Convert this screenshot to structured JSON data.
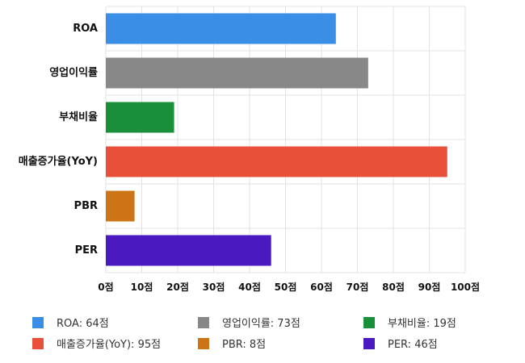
{
  "chart_data": {
    "type": "bar",
    "orientation": "horizontal",
    "categories": [
      "ROA",
      "영업이익률",
      "부채비율",
      "매출증가율(YoY)",
      "PBR",
      "PER"
    ],
    "values": [
      64,
      73,
      19,
      95,
      8,
      46
    ],
    "colors": [
      "#3a8ee6",
      "#888888",
      "#1a8f3a",
      "#e8503a",
      "#cc7416",
      "#4a1ac0"
    ],
    "xlim": [
      0,
      100
    ],
    "x_ticks": [
      0,
      10,
      20,
      30,
      40,
      50,
      60,
      70,
      80,
      90,
      100
    ],
    "x_tick_labels": [
      "0점",
      "10점",
      "20점",
      "30점",
      "40점",
      "50점",
      "60점",
      "70점",
      "80점",
      "90점",
      "100점"
    ],
    "grid": true,
    "legend_position": "bottom",
    "legend": [
      {
        "label": "ROA: 64점",
        "color": "#3a8ee6"
      },
      {
        "label": "영업이익률: 73점",
        "color": "#888888"
      },
      {
        "label": "부채비율: 19점",
        "color": "#1a8f3a"
      },
      {
        "label": "매출증가율(YoY): 95점",
        "color": "#e8503a"
      },
      {
        "label": "PBR: 8점",
        "color": "#cc7416"
      },
      {
        "label": "PER: 46점",
        "color": "#4a1ac0"
      }
    ]
  }
}
